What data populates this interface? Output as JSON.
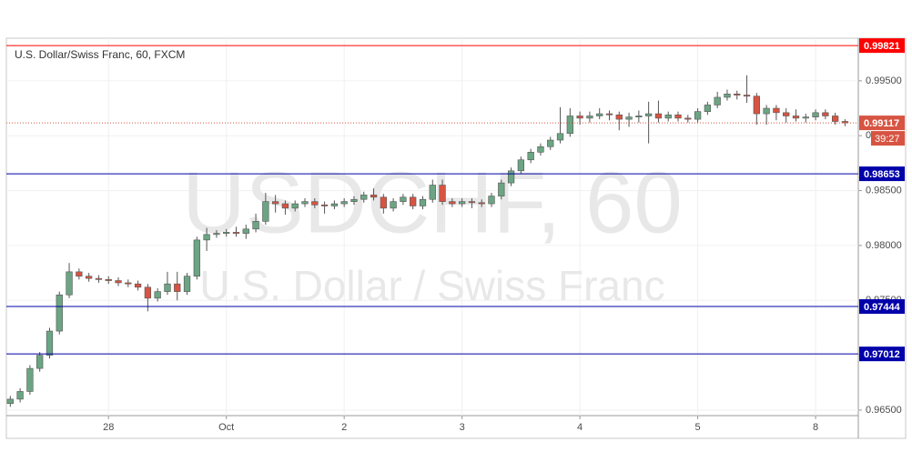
{
  "chart_data": {
    "type": "candlestick",
    "title": "U.S. Dollar/Swiss Franc, 60, FXCM",
    "watermark": [
      "USDCHF, 60",
      "U.S. Dollar / Swiss Franc"
    ],
    "up_color": "#6ba583",
    "down_color": "#d75442",
    "x": [
      0,
      2,
      4,
      6,
      8,
      10,
      12,
      14,
      16,
      18,
      20,
      22,
      24,
      26,
      28,
      30,
      32,
      34,
      36,
      38,
      40,
      42,
      44,
      46,
      48,
      50,
      52,
      54,
      56,
      58,
      60,
      62,
      64,
      66,
      68,
      70,
      72,
      74,
      76,
      78,
      80,
      82,
      84,
      86,
      88,
      90,
      92,
      94,
      96,
      98,
      100,
      102,
      104,
      106,
      108,
      110,
      112,
      114,
      116,
      118,
      120,
      122,
      124,
      126,
      128,
      130,
      132,
      134,
      136,
      138,
      140,
      142,
      144,
      146,
      148,
      150,
      152,
      154,
      156,
      158,
      160,
      162,
      164,
      166,
      168,
      170
    ],
    "open": [
      0.9656,
      0.966,
      0.9667,
      0.9688,
      0.97,
      0.9722,
      0.9755,
      0.9776,
      0.9772,
      0.977,
      0.9769,
      0.9768,
      0.9766,
      0.9765,
      0.9762,
      0.9752,
      0.9758,
      0.9765,
      0.9758,
      0.9772,
      0.9805,
      0.981,
      0.9811,
      0.9812,
      0.9811,
      0.9815,
      0.9822,
      0.984,
      0.9838,
      0.9834,
      0.9838,
      0.984,
      0.9837,
      0.9836,
      0.9838,
      0.984,
      0.9842,
      0.9846,
      0.9844,
      0.9834,
      0.984,
      0.9844,
      0.9836,
      0.9842,
      0.9855,
      0.984,
      0.9838,
      0.984,
      0.9839,
      0.9838,
      0.9845,
      0.9857,
      0.9868,
      0.9878,
      0.9885,
      0.989,
      0.9896,
      0.9902,
      0.9918,
      0.9916,
      0.9918,
      0.992,
      0.9919,
      0.9915,
      0.9917,
      0.9918,
      0.992,
      0.9916,
      0.9919,
      0.9916,
      0.9915,
      0.9922,
      0.9928,
      0.9935,
      0.9938,
      0.9937,
      0.9936,
      0.992,
      0.9925,
      0.9921,
      0.9918,
      0.9916,
      0.9917,
      0.9921,
      0.9918,
      0.9913
    ],
    "high": [
      0.9663,
      0.967,
      0.9691,
      0.9703,
      0.9725,
      0.9758,
      0.9784,
      0.9779,
      0.9775,
      0.9773,
      0.9772,
      0.9771,
      0.9769,
      0.9768,
      0.9765,
      0.9761,
      0.9776,
      0.9776,
      0.9775,
      0.9808,
      0.9816,
      0.9814,
      0.9815,
      0.9817,
      0.9819,
      0.9829,
      0.9848,
      0.9846,
      0.9841,
      0.9841,
      0.9843,
      0.9843,
      0.984,
      0.9841,
      0.9843,
      0.9845,
      0.9849,
      0.9852,
      0.9847,
      0.9843,
      0.9847,
      0.9847,
      0.9845,
      0.986,
      0.986,
      0.9843,
      0.9843,
      0.9843,
      0.9842,
      0.9848,
      0.986,
      0.9871,
      0.9881,
      0.9888,
      0.9893,
      0.9899,
      0.9926,
      0.9925,
      0.9922,
      0.9922,
      0.9925,
      0.9923,
      0.9922,
      0.9921,
      0.9923,
      0.9931,
      0.9932,
      0.9922,
      0.9922,
      0.9919,
      0.9925,
      0.9931,
      0.994,
      0.9942,
      0.9941,
      0.9955,
      0.9939,
      0.9928,
      0.9928,
      0.9925,
      0.9924,
      0.992,
      0.9924,
      0.9924,
      0.9921,
      0.9915
    ],
    "low": [
      0.9653,
      0.9657,
      0.9664,
      0.9685,
      0.9697,
      0.9719,
      0.9752,
      0.9769,
      0.9767,
      0.9766,
      0.9765,
      0.9763,
      0.9762,
      0.9759,
      0.974,
      0.9749,
      0.9755,
      0.975,
      0.9755,
      0.9769,
      0.9795,
      0.9807,
      0.9808,
      0.9808,
      0.9806,
      0.9812,
      0.9819,
      0.983,
      0.9828,
      0.9831,
      0.9835,
      0.9834,
      0.9829,
      0.9833,
      0.9835,
      0.9837,
      0.9839,
      0.9841,
      0.9829,
      0.9831,
      0.9837,
      0.9833,
      0.9833,
      0.9839,
      0.9837,
      0.9835,
      0.9835,
      0.9834,
      0.9835,
      0.9835,
      0.9842,
      0.9854,
      0.9865,
      0.9875,
      0.9882,
      0.9887,
      0.9893,
      0.9899,
      0.991,
      0.9912,
      0.9915,
      0.9914,
      0.9905,
      0.9908,
      0.9912,
      0.9893,
      0.9912,
      0.9913,
      0.9913,
      0.9912,
      0.9912,
      0.9919,
      0.9925,
      0.9932,
      0.9933,
      0.993,
      0.991,
      0.991,
      0.9914,
      0.9912,
      0.9913,
      0.9912,
      0.9914,
      0.9915,
      0.991,
      0.99087
    ],
    "close": [
      0.966,
      0.9667,
      0.9688,
      0.97,
      0.9722,
      0.9755,
      0.9776,
      0.9772,
      0.977,
      0.9769,
      0.9768,
      0.9766,
      0.9765,
      0.9762,
      0.9752,
      0.9758,
      0.9765,
      0.9758,
      0.9772,
      0.9805,
      0.981,
      0.9811,
      0.9812,
      0.9811,
      0.9815,
      0.9822,
      0.984,
      0.9838,
      0.9834,
      0.9838,
      0.984,
      0.9837,
      0.9836,
      0.9838,
      0.984,
      0.9842,
      0.9846,
      0.9844,
      0.9834,
      0.984,
      0.9844,
      0.9836,
      0.9842,
      0.9855,
      0.984,
      0.9838,
      0.984,
      0.9839,
      0.9838,
      0.9845,
      0.9857,
      0.9868,
      0.9878,
      0.9885,
      0.989,
      0.9896,
      0.9902,
      0.9918,
      0.9916,
      0.9918,
      0.992,
      0.9919,
      0.9915,
      0.9917,
      0.9918,
      0.992,
      0.9916,
      0.9919,
      0.9916,
      0.9915,
      0.9922,
      0.9928,
      0.9935,
      0.9938,
      0.9937,
      0.9936,
      0.992,
      0.9925,
      0.9921,
      0.9918,
      0.9916,
      0.9917,
      0.9921,
      0.9918,
      0.9913,
      0.99117
    ],
    "xlim": [
      -0.8,
      172.7
    ],
    "xticks": [
      {
        "value": 20,
        "label": "28"
      },
      {
        "value": 44,
        "label": "Oct"
      },
      {
        "value": 68,
        "label": "2"
      },
      {
        "value": 92,
        "label": "3"
      },
      {
        "value": 116,
        "label": "4"
      },
      {
        "value": 140,
        "label": "5"
      },
      {
        "value": 164,
        "label": "8"
      }
    ],
    "ylim": [
      0.9645,
      0.9988
    ],
    "yticks": [
      {
        "value": 0.965,
        "label": "0.96500"
      },
      {
        "value": 0.97,
        "label": "0.97000"
      },
      {
        "value": 0.975,
        "label": "0.97500"
      },
      {
        "value": 0.98,
        "label": "0.98000"
      },
      {
        "value": 0.985,
        "label": "0.98500"
      },
      {
        "value": 0.99,
        "label": "0.99000"
      },
      {
        "value": 0.995,
        "label": "0.99500"
      }
    ],
    "grid": true,
    "levels": [
      {
        "value": 0.99821,
        "color": "#ff0000"
      },
      {
        "value": 0.98653,
        "color": "#0000aa"
      },
      {
        "value": 0.97444,
        "color": "#0000aa"
      },
      {
        "value": 0.97012,
        "color": "#0000aa"
      }
    ],
    "last_price": {
      "value": 0.99117,
      "color": "#d75442",
      "countdown": "39:27"
    }
  }
}
